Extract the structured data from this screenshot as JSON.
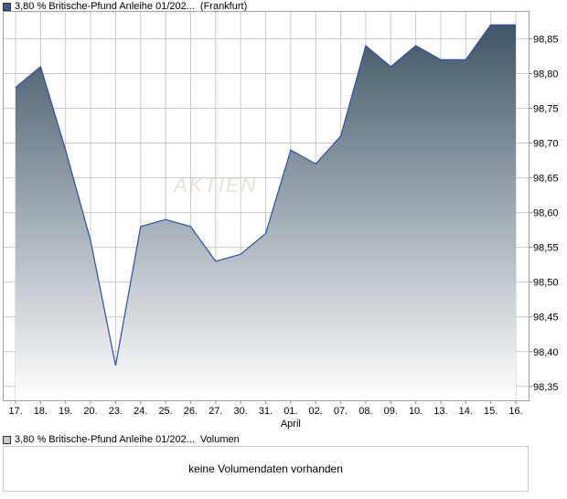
{
  "legend": {
    "price_label": "3,80 % Britische-Pfund Anleihe 01/202...",
    "price_exchange": "(Frankfurt)",
    "volume_label": "3,80 % Britische-Pfund Anleihe 01/202...",
    "volume_suffix": "Volumen"
  },
  "watermark": "AKTIEN",
  "volume_message": "keine Volumendaten vorhanden",
  "colors": {
    "line": "#2a4fa8",
    "area_top": "#405666",
    "area_bottom": "#ffffff",
    "grid": "#c8c8c8"
  },
  "chart_data": {
    "type": "area",
    "categories": [
      "17.",
      "18.",
      "19.",
      "20.",
      "23.",
      "24.",
      "25.",
      "26.",
      "27.",
      "30.",
      "31.",
      "01.",
      "02.",
      "07.",
      "08.",
      "09.",
      "10.",
      "13.",
      "14.",
      "15.",
      "16."
    ],
    "month_label": "April",
    "month_label_index": 11,
    "series": [
      {
        "values": [
          98.78,
          98.81,
          98.69,
          98.56,
          98.38,
          98.58,
          98.59,
          98.58,
          98.53,
          98.54,
          98.57,
          98.69,
          98.67,
          98.71,
          98.84,
          98.81,
          98.84,
          98.82,
          98.82,
          98.87,
          98.87
        ]
      }
    ],
    "y_ticks": [
      "98,35",
      "98,40",
      "98,45",
      "98,50",
      "98,55",
      "98,60",
      "98,65",
      "98,70",
      "98,75",
      "98,80",
      "98,85"
    ],
    "ylim": [
      98.33,
      98.89
    ],
    "grid": true,
    "y_axis_side": "right"
  }
}
